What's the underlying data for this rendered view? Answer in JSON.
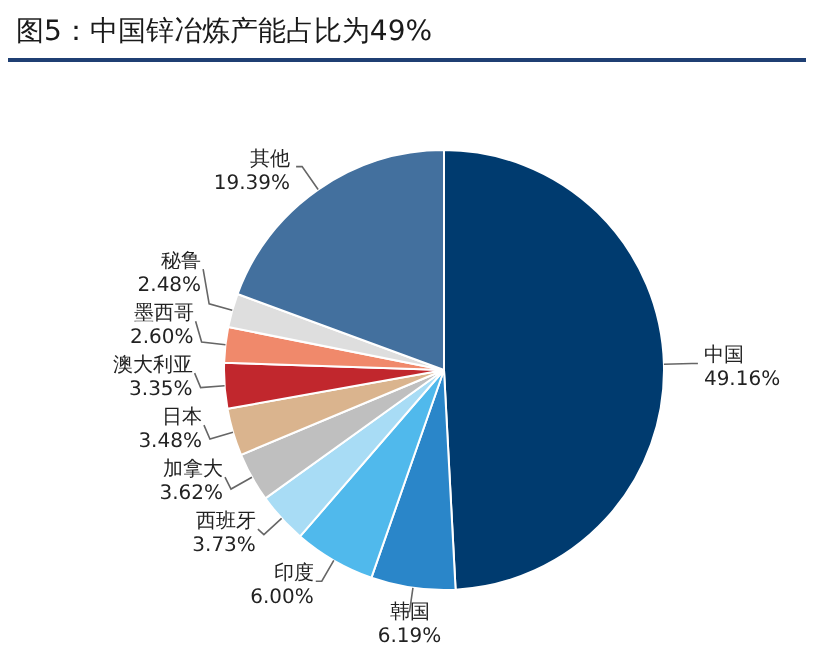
{
  "chart_data": {
    "type": "pie",
    "title": "图5：中国锌冶炼产能占比为49%",
    "categories": [
      "中国",
      "韩国",
      "印度",
      "西班牙",
      "加拿大",
      "日本",
      "澳大利亚",
      "墨西哥",
      "秘鲁",
      "其他"
    ],
    "values": [
      49.16,
      6.19,
      6.0,
      3.73,
      3.62,
      3.48,
      3.35,
      2.6,
      2.48,
      19.39
    ],
    "value_labels": [
      "49.16%",
      "6.19%",
      "6.00%",
      "3.73%",
      "3.62%",
      "3.48%",
      "3.35%",
      "2.60%",
      "2.48%",
      "19.39%"
    ],
    "colors": [
      "#003b6f",
      "#2a86c9",
      "#50b9ec",
      "#a8dcf5",
      "#bfbfbf",
      "#dab48e",
      "#c1272d",
      "#f0896b",
      "#dedede",
      "#43709e"
    ],
    "legend": false
  }
}
